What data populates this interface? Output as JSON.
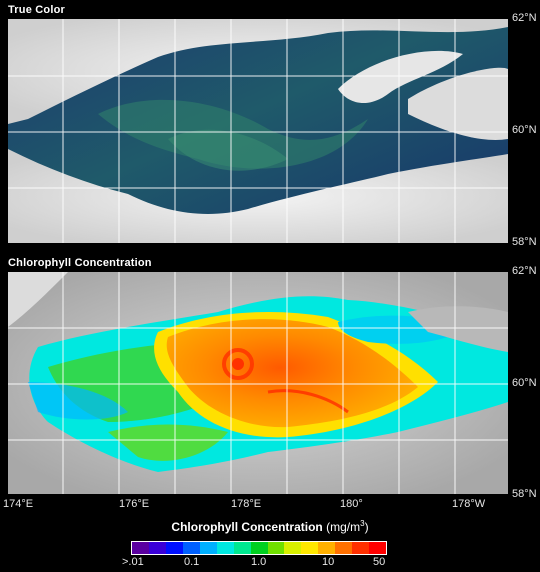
{
  "panels": {
    "true_color": {
      "title": "True Color"
    },
    "chlorophyll": {
      "title": "Chlorophyll Concentration"
    }
  },
  "latitude_labels": [
    "62°N",
    "60°N",
    "58°N"
  ],
  "longitude_labels": [
    "174°E",
    "176°E",
    "178°E",
    "180°",
    "178°W"
  ],
  "colorbar": {
    "title": "Chlorophyll Concentration",
    "unit_prefix": "(mg/m",
    "unit_exp": "3",
    "unit_suffix": ")",
    "ticks": [
      ">.01",
      "0.1",
      "1.0",
      "10",
      "50"
    ],
    "colors": [
      "#5a00a0",
      "#3a00d8",
      "#0010ff",
      "#0060ff",
      "#00b0ff",
      "#00e8e0",
      "#00e890",
      "#00d020",
      "#70e000",
      "#d8f000",
      "#ffe800",
      "#ffb000",
      "#ff7000",
      "#ff3000",
      "#ff0000"
    ]
  }
}
